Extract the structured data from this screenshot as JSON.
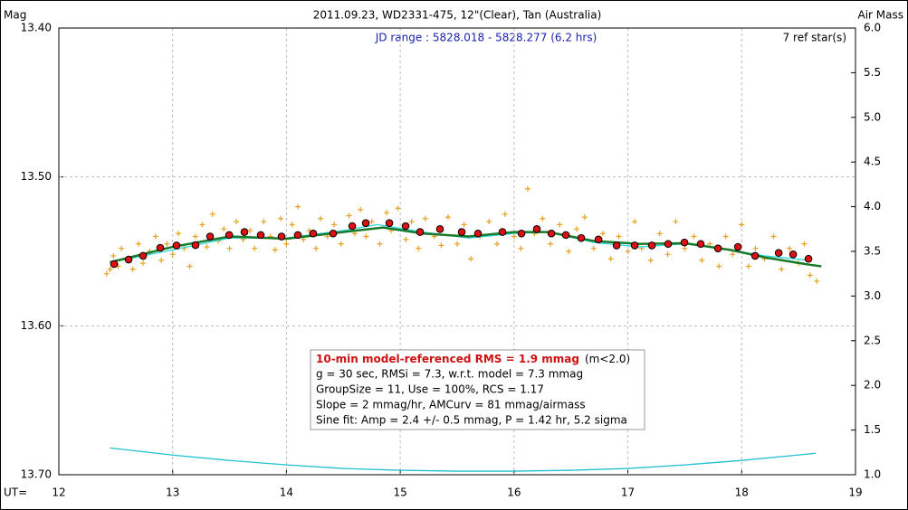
{
  "chart_data": {
    "type": "scatter",
    "title": "2011.09.23, WD2331-475, 12\"(Clear), Tan (Australia)",
    "subtitle": "JD range : 5828.018 - 5828.277 (6.2 hrs)",
    "ref_stars": "7 ref star(s)",
    "ylabel": "Mag",
    "y2label": "Air Mass",
    "xlabel": "UT=",
    "xlim": [
      12,
      19
    ],
    "xticks": [
      12,
      13,
      14,
      15,
      16,
      17,
      18,
      19
    ],
    "ylim": [
      13.4,
      13.7
    ],
    "invert_y": true,
    "yticks": [
      {
        "value": 13.4,
        "label": "13.40"
      },
      {
        "value": 13.5,
        "label": "13.50"
      },
      {
        "value": 13.6,
        "label": "13.60"
      },
      {
        "value": 13.7,
        "label": "13.70"
      }
    ],
    "y2lim": [
      1,
      6
    ],
    "y2ticks": [
      {
        "value": 1,
        "label": "1.0"
      },
      1.5,
      {
        "value": 2,
        "label": "2.0"
      },
      2.5,
      {
        "value": 3,
        "label": "3.0"
      },
      3.5,
      {
        "value": 4,
        "label": "4.0"
      },
      4.5,
      {
        "value": 5,
        "label": "5.0"
      },
      5.5,
      {
        "value": 6,
        "label": "6.0"
      }
    ],
    "grid": true,
    "series": [
      {
        "style": "cross",
        "color": "#e8a020",
        "x": [
          12.42,
          12.45,
          12.48,
          12.52,
          12.55,
          12.6,
          12.65,
          12.7,
          12.74,
          12.8,
          12.85,
          12.9,
          12.95,
          13.0,
          13.05,
          13.1,
          13.15,
          13.2,
          13.26,
          13.3,
          13.35,
          13.4,
          13.45,
          13.5,
          13.56,
          13.62,
          13.68,
          13.72,
          13.8,
          13.86,
          13.9,
          13.95,
          14.0,
          14.05,
          14.1,
          14.15,
          14.2,
          14.26,
          14.3,
          14.36,
          14.42,
          14.48,
          14.55,
          14.6,
          14.65,
          14.7,
          14.75,
          14.82,
          14.88,
          14.92,
          14.98,
          15.05,
          15.1,
          15.16,
          15.22,
          15.3,
          15.36,
          15.42,
          15.5,
          15.56,
          15.62,
          15.7,
          15.78,
          15.85,
          15.92,
          16.0,
          16.06,
          16.12,
          16.18,
          16.25,
          16.32,
          16.4,
          16.48,
          16.55,
          16.62,
          16.7,
          16.78,
          16.85,
          16.92,
          17.0,
          17.06,
          17.12,
          17.2,
          17.28,
          17.35,
          17.42,
          17.5,
          17.58,
          17.65,
          17.72,
          17.8,
          17.86,
          17.92,
          18.0,
          18.06,
          18.12,
          18.2,
          18.28,
          18.35,
          18.42,
          18.5,
          18.55,
          18.6,
          18.66
        ],
        "values": [
          13.565,
          13.562,
          13.553,
          13.56,
          13.548,
          13.556,
          13.562,
          13.545,
          13.558,
          13.55,
          13.54,
          13.556,
          13.545,
          13.552,
          13.538,
          13.548,
          13.56,
          13.54,
          13.532,
          13.547,
          13.525,
          13.543,
          13.535,
          13.548,
          13.53,
          13.542,
          13.536,
          13.548,
          13.53,
          13.54,
          13.549,
          13.528,
          13.545,
          13.532,
          13.52,
          13.542,
          13.536,
          13.548,
          13.528,
          13.54,
          13.532,
          13.545,
          13.526,
          13.538,
          13.522,
          13.54,
          13.53,
          13.545,
          13.524,
          13.536,
          13.521,
          13.542,
          13.53,
          13.548,
          13.528,
          13.54,
          13.546,
          13.527,
          13.545,
          13.532,
          13.555,
          13.54,
          13.53,
          13.545,
          13.525,
          13.54,
          13.548,
          13.508,
          13.538,
          13.528,
          13.545,
          13.532,
          13.55,
          13.535,
          13.527,
          13.548,
          13.538,
          13.555,
          13.54,
          13.55,
          13.53,
          13.548,
          13.556,
          13.538,
          13.552,
          13.53,
          13.548,
          13.54,
          13.556,
          13.545,
          13.56,
          13.54,
          13.552,
          13.532,
          13.56,
          13.548,
          13.555,
          13.54,
          13.562,
          13.548,
          13.558,
          13.545,
          13.566,
          13.57
        ]
      },
      {
        "style": "line",
        "color": "#30d8e0",
        "x": [
          12.45,
          13.0,
          13.5,
          14.0,
          14.5,
          14.8,
          15.2,
          15.6,
          16.0,
          16.3,
          16.7,
          17.1,
          17.5,
          17.9,
          18.2,
          18.6
        ],
        "values": [
          13.5575,
          13.549,
          13.541,
          13.541,
          13.536,
          13.532,
          13.537,
          13.541,
          13.538,
          13.537,
          13.544,
          13.547,
          13.545,
          13.549,
          13.553,
          13.556
        ]
      },
      {
        "style": "line",
        "color": "#1a7a2a",
        "x": [
          12.45,
          13.0,
          13.5,
          14.0,
          14.5,
          14.85,
          15.2,
          15.6,
          16.0,
          16.3,
          16.7,
          17.1,
          17.5,
          17.9,
          18.2,
          18.6,
          18.7
        ],
        "values": [
          13.5573,
          13.547,
          13.54,
          13.5415,
          13.537,
          13.534,
          13.538,
          13.54,
          13.537,
          13.537,
          13.543,
          13.545,
          13.5445,
          13.549,
          13.554,
          13.559,
          13.56
        ]
      },
      {
        "style": "dot",
        "color": "#dd1111",
        "x": [
          12.485,
          12.613,
          12.74,
          12.891,
          13.034,
          13.201,
          13.329,
          13.496,
          13.631,
          13.774,
          13.957,
          14.1,
          14.235,
          14.41,
          14.578,
          14.697,
          14.904,
          15.047,
          15.174,
          15.349,
          15.54,
          15.683,
          15.898,
          16.065,
          16.2,
          16.328,
          16.455,
          16.59,
          16.742,
          16.901,
          17.06,
          17.211,
          17.354,
          17.497,
          17.64,
          17.792,
          17.967,
          18.118,
          18.325,
          18.452,
          18.587
        ],
        "values": [
          13.5585,
          13.5555,
          13.553,
          13.5476,
          13.546,
          13.5458,
          13.54,
          13.539,
          13.537,
          13.539,
          13.54,
          13.539,
          13.538,
          13.538,
          13.533,
          13.531,
          13.531,
          13.533,
          13.537,
          13.535,
          13.537,
          13.538,
          13.537,
          13.538,
          13.535,
          13.538,
          13.539,
          13.541,
          13.542,
          13.546,
          13.546,
          13.546,
          13.545,
          13.544,
          13.545,
          13.548,
          13.547,
          13.553,
          13.551,
          13.552,
          13.555
        ]
      },
      {
        "style": "line",
        "color": "#20c0d0",
        "axis": "y2",
        "x": [
          12.45,
          13.0,
          13.5,
          14.0,
          14.5,
          15.0,
          15.5,
          16.0,
          16.5,
          17.0,
          17.5,
          18.0,
          18.65
        ],
        "values": [
          1.3,
          1.22,
          1.16,
          1.11,
          1.07,
          1.05,
          1.04,
          1.04,
          1.05,
          1.07,
          1.11,
          1.16,
          1.24
        ]
      }
    ],
    "info_box": {
      "headline": "10-min model-referenced RMS = 1.9 mmag",
      "headline_note": "(m<2.0)",
      "lines": [
        "g = 30 sec, RMSi = 7.3, w.r.t. model = 7.3 mmag",
        "GroupSize = 11, Use = 100%, RCS = 1.17",
        "Slope = 2 mmag/hr, AMCurv = 81 mmag/airmass",
        "Sine fit: Amp = 2.4 +/- 0.5 mmag, P = 1.42 hr, 5.2 sigma"
      ]
    }
  }
}
